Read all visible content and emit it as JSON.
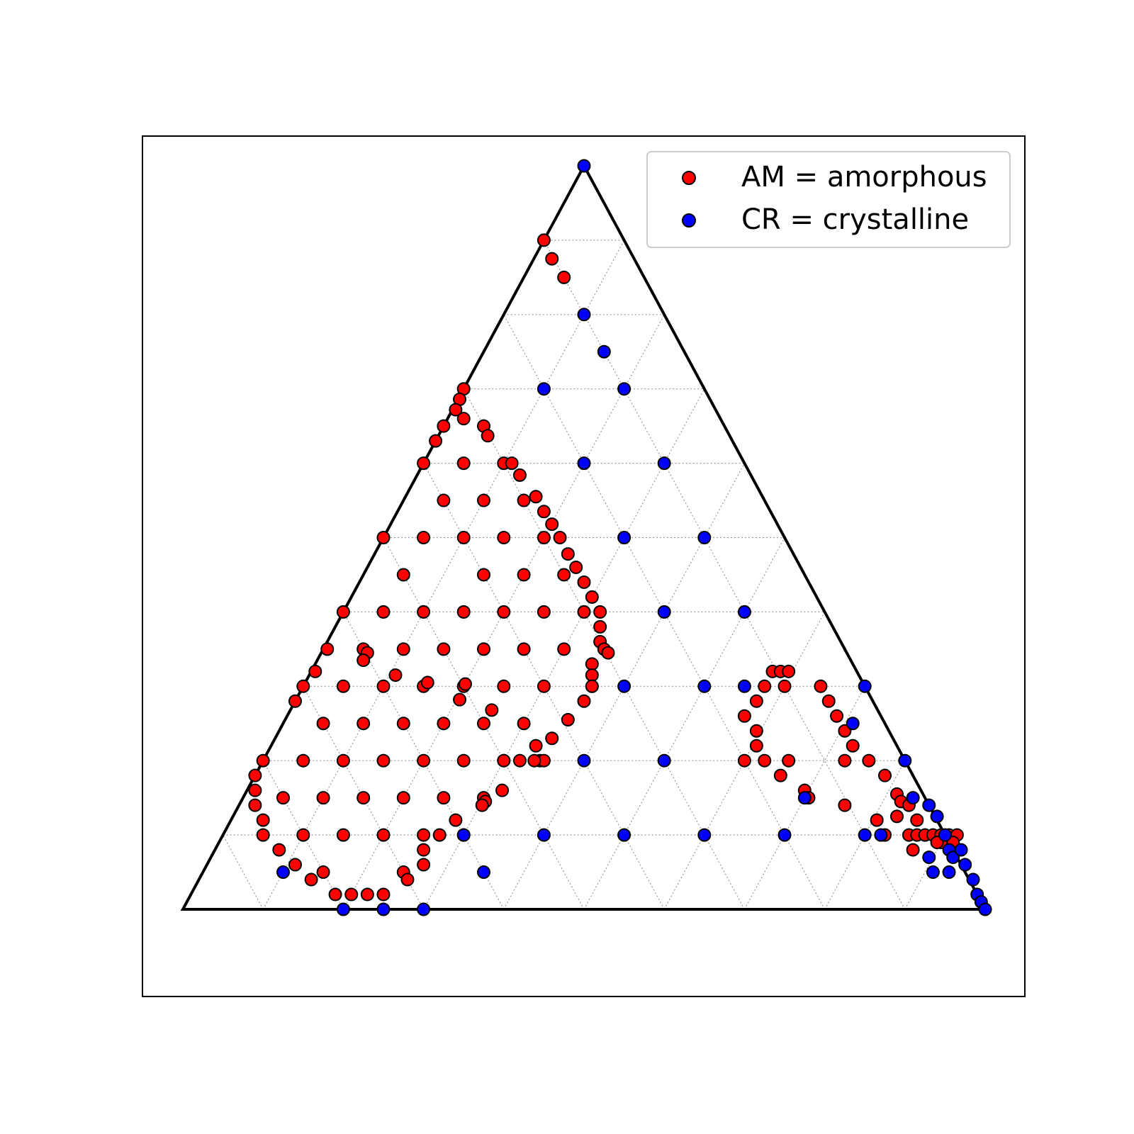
{
  "chart_data": {
    "type": "scatter",
    "plot_kind": "ternary",
    "title": "",
    "xlabel": "",
    "ylabel": "",
    "coordinate_note": "x,y are ternary barycentric projections: x in [0,1] along the base (left vertex 0, right vertex 1), y in [0,1] as fraction of triangle height (base 0, apex 1)",
    "grid": true,
    "grid_step": 0.1,
    "legend": "top-right",
    "series": [
      {
        "name": "AM = amorphous",
        "color": "#ff0000",
        "points": [
          [
            0.45,
            0.9
          ],
          [
            0.46,
            0.875
          ],
          [
            0.475,
            0.85
          ],
          [
            0.35,
            0.7
          ],
          [
            0.345,
            0.686
          ],
          [
            0.34,
            0.672
          ],
          [
            0.325,
            0.65
          ],
          [
            0.315,
            0.63
          ],
          [
            0.35,
            0.66
          ],
          [
            0.375,
            0.65
          ],
          [
            0.38,
            0.637
          ],
          [
            0.3,
            0.6
          ],
          [
            0.35,
            0.6
          ],
          [
            0.4,
            0.6
          ],
          [
            0.41,
            0.6
          ],
          [
            0.42,
            0.584
          ],
          [
            0.325,
            0.55
          ],
          [
            0.375,
            0.55
          ],
          [
            0.425,
            0.55
          ],
          [
            0.44,
            0.555
          ],
          [
            0.45,
            0.535
          ],
          [
            0.46,
            0.518
          ],
          [
            0.25,
            0.5
          ],
          [
            0.3,
            0.5
          ],
          [
            0.35,
            0.5
          ],
          [
            0.4,
            0.5
          ],
          [
            0.45,
            0.5
          ],
          [
            0.47,
            0.5
          ],
          [
            0.48,
            0.478
          ],
          [
            0.275,
            0.45
          ],
          [
            0.375,
            0.45
          ],
          [
            0.425,
            0.45
          ],
          [
            0.475,
            0.45
          ],
          [
            0.49,
            0.46
          ],
          [
            0.5,
            0.44
          ],
          [
            0.51,
            0.42
          ],
          [
            0.2,
            0.4
          ],
          [
            0.25,
            0.4
          ],
          [
            0.3,
            0.4
          ],
          [
            0.35,
            0.4
          ],
          [
            0.4,
            0.4
          ],
          [
            0.45,
            0.4
          ],
          [
            0.5,
            0.4
          ],
          [
            0.52,
            0.4
          ],
          [
            0.52,
            0.38
          ],
          [
            0.52,
            0.36
          ],
          [
            0.18,
            0.35
          ],
          [
            0.225,
            0.35
          ],
          [
            0.275,
            0.35
          ],
          [
            0.325,
            0.35
          ],
          [
            0.375,
            0.35
          ],
          [
            0.425,
            0.35
          ],
          [
            0.475,
            0.35
          ],
          [
            0.525,
            0.35
          ],
          [
            0.53,
            0.345
          ],
          [
            0.51,
            0.33
          ],
          [
            0.165,
            0.32
          ],
          [
            0.23,
            0.345
          ],
          [
            0.225,
            0.335
          ],
          [
            0.265,
            0.315
          ],
          [
            0.51,
            0.315
          ],
          [
            0.51,
            0.3
          ],
          [
            0.15,
            0.3
          ],
          [
            0.2,
            0.3
          ],
          [
            0.25,
            0.3
          ],
          [
            0.3,
            0.3
          ],
          [
            0.305,
            0.305
          ],
          [
            0.35,
            0.3
          ],
          [
            0.352,
            0.303
          ],
          [
            0.4,
            0.3
          ],
          [
            0.45,
            0.3
          ],
          [
            0.51,
            0.3
          ],
          [
            0.14,
            0.28
          ],
          [
            0.345,
            0.282
          ],
          [
            0.385,
            0.268
          ],
          [
            0.5,
            0.28
          ],
          [
            0.175,
            0.25
          ],
          [
            0.225,
            0.25
          ],
          [
            0.275,
            0.25
          ],
          [
            0.325,
            0.25
          ],
          [
            0.375,
            0.25
          ],
          [
            0.425,
            0.25
          ],
          [
            0.48,
            0.255
          ],
          [
            0.46,
            0.23
          ],
          [
            0.44,
            0.22
          ],
          [
            0.4,
            0.2
          ],
          [
            0.445,
            0.2
          ],
          [
            0.45,
            0.2
          ],
          [
            0.1,
            0.2
          ],
          [
            0.15,
            0.2
          ],
          [
            0.2,
            0.2
          ],
          [
            0.25,
            0.2
          ],
          [
            0.3,
            0.2
          ],
          [
            0.35,
            0.2
          ],
          [
            0.4,
            0.2
          ],
          [
            0.42,
            0.2
          ],
          [
            0.438,
            0.2
          ],
          [
            0.09,
            0.18
          ],
          [
            0.398,
            0.16
          ],
          [
            0.09,
            0.16
          ],
          [
            0.125,
            0.15
          ],
          [
            0.175,
            0.15
          ],
          [
            0.225,
            0.15
          ],
          [
            0.275,
            0.15
          ],
          [
            0.325,
            0.15
          ],
          [
            0.375,
            0.15
          ],
          [
            0.377,
            0.145
          ],
          [
            0.373,
            0.14
          ],
          [
            0.09,
            0.14
          ],
          [
            0.1,
            0.12
          ],
          [
            0.34,
            0.12
          ],
          [
            0.1,
            0.1
          ],
          [
            0.15,
            0.1
          ],
          [
            0.2,
            0.1
          ],
          [
            0.25,
            0.1
          ],
          [
            0.3,
            0.1
          ],
          [
            0.32,
            0.1
          ],
          [
            0.35,
            0.1
          ],
          [
            0.12,
            0.08
          ],
          [
            0.3,
            0.08
          ],
          [
            0.3,
            0.06
          ],
          [
            0.14,
            0.06
          ],
          [
            0.175,
            0.05
          ],
          [
            0.275,
            0.05
          ],
          [
            0.28,
            0.04
          ],
          [
            0.16,
            0.04
          ],
          [
            0.19,
            0.02
          ],
          [
            0.21,
            0.02
          ],
          [
            0.23,
            0.02
          ],
          [
            0.25,
            0.02
          ],
          [
            0.735,
            0.32
          ],
          [
            0.745,
            0.32
          ],
          [
            0.755,
            0.32
          ],
          [
            0.725,
            0.3
          ],
          [
            0.75,
            0.3
          ],
          [
            0.795,
            0.3
          ],
          [
            0.715,
            0.28
          ],
          [
            0.805,
            0.28
          ],
          [
            0.815,
            0.26
          ],
          [
            0.7,
            0.26
          ],
          [
            0.715,
            0.24
          ],
          [
            0.825,
            0.24
          ],
          [
            0.835,
            0.22
          ],
          [
            0.715,
            0.22
          ],
          [
            0.7,
            0.2
          ],
          [
            0.725,
            0.2
          ],
          [
            0.755,
            0.2
          ],
          [
            0.825,
            0.2
          ],
          [
            0.855,
            0.2
          ],
          [
            0.745,
            0.18
          ],
          [
            0.875,
            0.18
          ],
          [
            0.775,
            0.16
          ],
          [
            0.78,
            0.15
          ],
          [
            0.89,
            0.155
          ],
          [
            0.895,
            0.145
          ],
          [
            0.825,
            0.14
          ],
          [
            0.905,
            0.14
          ],
          [
            0.89,
            0.125
          ],
          [
            0.915,
            0.12
          ],
          [
            0.865,
            0.12
          ],
          [
            0.875,
            0.1
          ],
          [
            0.905,
            0.1
          ],
          [
            0.915,
            0.1
          ],
          [
            0.925,
            0.1
          ],
          [
            0.935,
            0.1
          ],
          [
            0.945,
            0.1
          ],
          [
            0.955,
            0.1
          ],
          [
            0.965,
            0.1
          ],
          [
            0.91,
            0.08
          ],
          [
            0.945,
            0.09
          ],
          [
            0.94,
            0.09
          ],
          [
            0.96,
            0.09
          ]
        ]
      },
      {
        "name": "CR = crystalline",
        "color": "#0000ff",
        "points": [
          [
            0.5,
            1.0
          ],
          [
            0.5,
            0.8
          ],
          [
            0.525,
            0.75
          ],
          [
            0.45,
            0.7
          ],
          [
            0.55,
            0.7
          ],
          [
            0.5,
            0.6
          ],
          [
            0.6,
            0.6
          ],
          [
            0.55,
            0.5
          ],
          [
            0.65,
            0.5
          ],
          [
            0.6,
            0.4
          ],
          [
            0.7,
            0.4
          ],
          [
            0.55,
            0.3
          ],
          [
            0.65,
            0.3
          ],
          [
            0.7,
            0.3
          ],
          [
            0.85,
            0.3
          ],
          [
            0.835,
            0.25
          ],
          [
            0.5,
            0.2
          ],
          [
            0.6,
            0.2
          ],
          [
            0.9,
            0.2
          ],
          [
            0.775,
            0.15
          ],
          [
            0.91,
            0.15
          ],
          [
            0.93,
            0.14
          ],
          [
            0.94,
            0.125
          ],
          [
            0.35,
            0.1
          ],
          [
            0.45,
            0.1
          ],
          [
            0.55,
            0.1
          ],
          [
            0.65,
            0.1
          ],
          [
            0.75,
            0.1
          ],
          [
            0.85,
            0.1
          ],
          [
            0.87,
            0.1
          ],
          [
            0.95,
            0.1
          ],
          [
            0.955,
            0.08
          ],
          [
            0.96,
            0.07
          ],
          [
            0.97,
            0.08
          ],
          [
            0.975,
            0.06
          ],
          [
            0.93,
            0.07
          ],
          [
            0.935,
            0.05
          ],
          [
            0.985,
            0.04
          ],
          [
            0.99,
            0.02
          ],
          [
            0.995,
            0.01
          ],
          [
            0.125,
            0.05
          ],
          [
            0.375,
            0.05
          ],
          [
            0.955,
            0.05
          ],
          [
            0.2,
            0.0
          ],
          [
            0.25,
            0.0
          ],
          [
            0.3,
            0.0
          ],
          [
            1.0,
            0.0
          ]
        ]
      }
    ]
  },
  "legend": {
    "items": [
      {
        "label": "AM = amorphous",
        "color": "#ff0000"
      },
      {
        "label": "CR = crystalline",
        "color": "#0000ff"
      }
    ]
  }
}
